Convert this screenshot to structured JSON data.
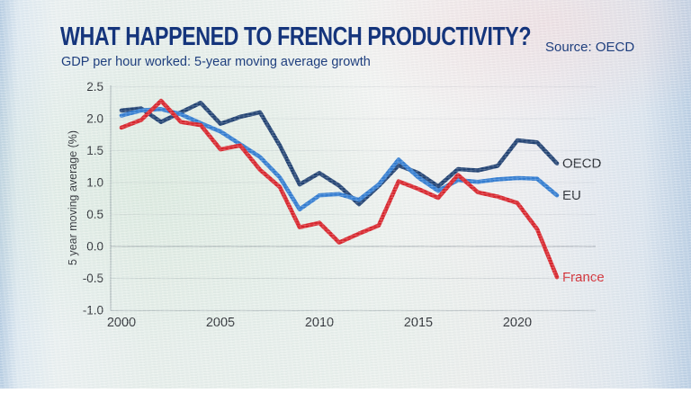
{
  "header": {
    "title": "WHAT HAPPENED TO FRENCH PRODUCTIVITY?",
    "subtitle": "GDP per hour worked: 5-year moving average growth",
    "source": "Source: OECD"
  },
  "colors": {
    "title_navy": "#15357c",
    "axis_text": "#26292e",
    "grid_faint": "rgba(100,112,124,0.10)",
    "zero_line": "rgba(90,100,112,0.45)",
    "axis_line": "rgba(110,122,134,0.45)",
    "oecd": "#1b3c6e",
    "eu": "#2e7ad1",
    "france": "#da1f26",
    "label_dark": "#1a1e24",
    "label_red": "#d22027"
  },
  "chart_data": {
    "type": "line",
    "title": "WHAT HAPPENED TO FRENCH PRODUCTIVITY?",
    "subtitle": "GDP per hour worked: 5-year moving average growth",
    "source": "Source: OECD",
    "xlabel": "",
    "ylabel": "5 year moving average (%)",
    "ylim": [
      -1.0,
      2.5
    ],
    "xlim": [
      2000,
      2022
    ],
    "grid": "horizontal-faint, zero-line emphasized",
    "legend_position": "line-end-labels-right",
    "x": [
      2000,
      2001,
      2002,
      2003,
      2004,
      2005,
      2006,
      2007,
      2008,
      2009,
      2010,
      2011,
      2012,
      2013,
      2014,
      2015,
      2016,
      2017,
      2018,
      2019,
      2020,
      2021,
      2022
    ],
    "x_ticks": [
      2000,
      2005,
      2010,
      2015,
      2020
    ],
    "y_ticks": [
      "2.5",
      "2.0",
      "1.5",
      "1.0",
      "0.5",
      "0.0",
      "-0.5",
      "-1.0"
    ],
    "y_tick_values": [
      2.5,
      2.0,
      1.5,
      1.0,
      0.5,
      0.0,
      -0.5,
      -1.0
    ],
    "series": [
      {
        "name": "OECD",
        "color_key": "oecd",
        "label_color_key": "label_dark",
        "values": [
          2.13,
          2.16,
          1.95,
          2.1,
          2.25,
          1.92,
          2.03,
          2.1,
          1.58,
          0.97,
          1.15,
          0.95,
          0.66,
          0.95,
          1.27,
          1.15,
          0.94,
          1.21,
          1.19,
          1.26,
          1.66,
          1.63,
          1.3
        ]
      },
      {
        "name": "EU",
        "color_key": "eu",
        "label_color_key": "label_dark",
        "values": [
          2.05,
          2.13,
          2.15,
          2.07,
          1.93,
          1.8,
          1.6,
          1.4,
          1.08,
          0.58,
          0.8,
          0.82,
          0.73,
          0.97,
          1.36,
          1.08,
          0.87,
          1.04,
          1.01,
          1.05,
          1.07,
          1.06,
          0.8
        ]
      },
      {
        "name": "France",
        "color_key": "france",
        "label_color_key": "label_red",
        "values": [
          1.86,
          1.98,
          2.28,
          1.95,
          1.9,
          1.52,
          1.58,
          1.2,
          0.93,
          0.3,
          0.37,
          0.06,
          0.2,
          0.33,
          1.02,
          0.9,
          0.76,
          1.12,
          0.85,
          0.78,
          0.68,
          0.27,
          -0.48
        ]
      }
    ]
  }
}
